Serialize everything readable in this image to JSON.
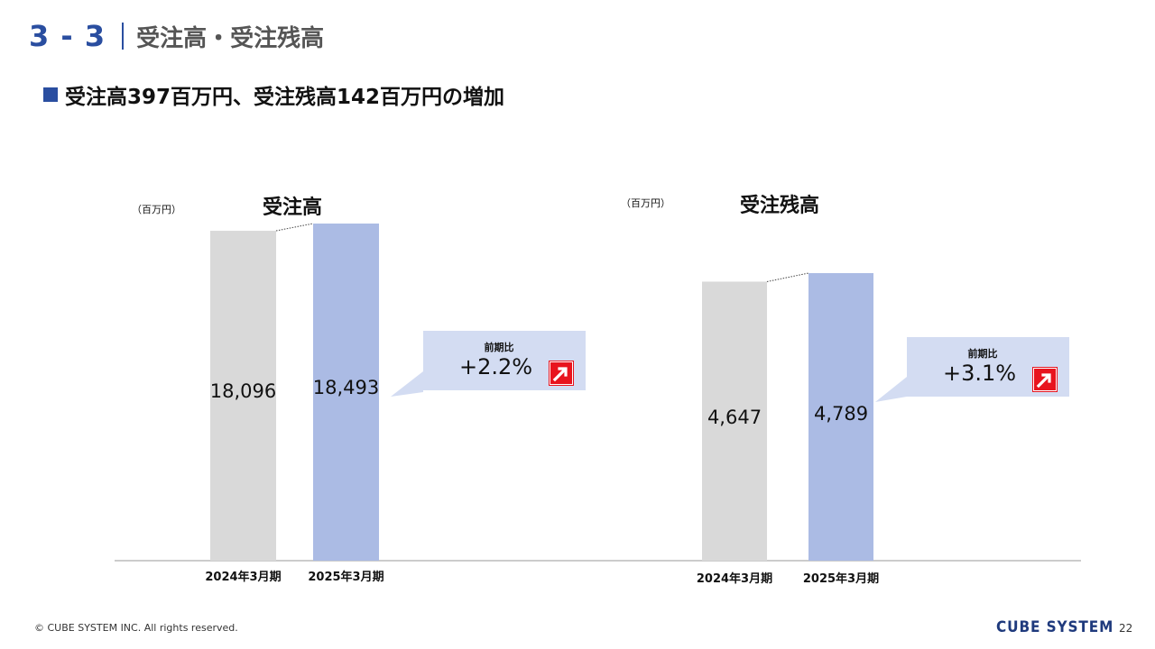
{
  "header": {
    "section_number": "3 - 3",
    "section_title": "受注高・受注残高"
  },
  "subheading": "受注高397百万円、受注残高142百万円の増加",
  "chart_data": [
    {
      "type": "bar",
      "title": "受注高",
      "unit": "（百万円）",
      "categories": [
        "2024年3月期",
        "2025年3月期"
      ],
      "values": [
        18096,
        18493
      ],
      "value_labels": [
        "18,096",
        "18,493"
      ],
      "colors": [
        "#d9d9d9",
        "#abbbe4"
      ],
      "change_label": "前期比",
      "change_value": "+2.2%"
    },
    {
      "type": "bar",
      "title": "受注残高",
      "unit": "（百万円）",
      "categories": [
        "2024年3月期",
        "2025年3月期"
      ],
      "values": [
        4647,
        4789
      ],
      "value_labels": [
        "4,647",
        "4,789"
      ],
      "colors": [
        "#d9d9d9",
        "#abbbe4"
      ],
      "change_label": "前期比",
      "change_value": "+3.1%"
    }
  ],
  "icons": {
    "increase": "up-arrow-icon"
  },
  "footer": {
    "copyright": "© CUBE SYSTEM INC. All rights reserved.",
    "logo": "CUBE SYSTEM",
    "page": "22"
  }
}
